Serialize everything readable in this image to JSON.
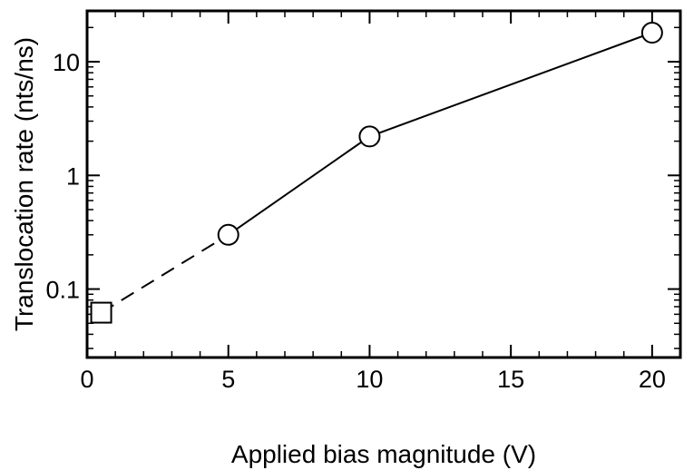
{
  "chart_data": {
    "type": "scatter",
    "xlabel": "Applied bias magnitude (V)",
    "ylabel": "Translocation rate (nts/ns)",
    "xlim": [
      0,
      21
    ],
    "ylim": [
      0.025,
      28
    ],
    "yscale": "log",
    "xticks": [
      0,
      5,
      10,
      15,
      20
    ],
    "xtick_labels": [
      "0",
      "5",
      "10",
      "15",
      "20"
    ],
    "yticks": [
      0.1,
      1,
      10
    ],
    "ytick_labels": [
      "0.1",
      "1",
      "10"
    ],
    "grid": false,
    "legend": "none",
    "series": [
      {
        "marker": "circle",
        "line": "solid",
        "x": [
          5,
          10,
          20
        ],
        "y": [
          0.3,
          2.2,
          18
        ]
      },
      {
        "marker": "square",
        "line": "dashed",
        "x": [
          0.5,
          5
        ],
        "y": [
          0.062,
          0.3
        ]
      }
    ]
  }
}
